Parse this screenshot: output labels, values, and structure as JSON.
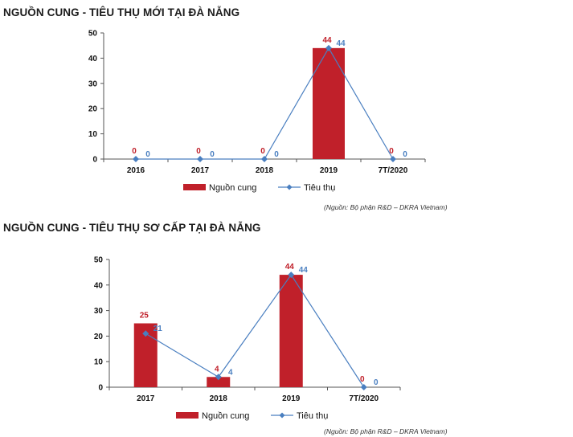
{
  "chart_data": [
    {
      "type": "bar",
      "title": "NGUỒN CUNG - TIÊU THỤ MỚI TẠI ĐÀ NẴNG",
      "source": "(Nguồn: Bộ phận R&D – DKRA Vietnam)",
      "categories": [
        "2016",
        "2017",
        "2018",
        "2019",
        "7T/2020"
      ],
      "series": [
        {
          "name": "Nguồn cung",
          "type": "bar",
          "values": [
            0,
            0,
            0,
            44,
            0
          ],
          "color": "#c0202a"
        },
        {
          "name": "Tiêu thụ",
          "type": "line",
          "values": [
            0,
            0,
            0,
            44,
            0
          ],
          "color": "#4a7fc0"
        }
      ],
      "ylim": [
        0,
        50
      ],
      "yticks": [
        "0",
        "10",
        "20",
        "30",
        "40",
        "50"
      ],
      "legend": "bottom-center",
      "grid": false
    },
    {
      "type": "bar",
      "title": "NGUỒN CUNG - TIÊU THỤ SƠ CẤP TẠI ĐÀ NẴNG",
      "source": "(Nguồn: Bộ phận R&D – DKRA Vietnam)",
      "categories": [
        "2017",
        "2018",
        "2019",
        "7T/2020"
      ],
      "series": [
        {
          "name": "Nguồn cung",
          "type": "bar",
          "values": [
            25,
            4,
            44,
            0
          ],
          "color": "#c0202a"
        },
        {
          "name": "Tiêu thụ",
          "type": "line",
          "values": [
            21,
            4,
            44,
            0
          ],
          "color": "#4a7fc0"
        }
      ],
      "ylim": [
        0,
        50
      ],
      "yticks": [
        "0",
        "10",
        "20",
        "30",
        "40",
        "50"
      ],
      "legend": "bottom-center",
      "grid": false
    }
  ]
}
